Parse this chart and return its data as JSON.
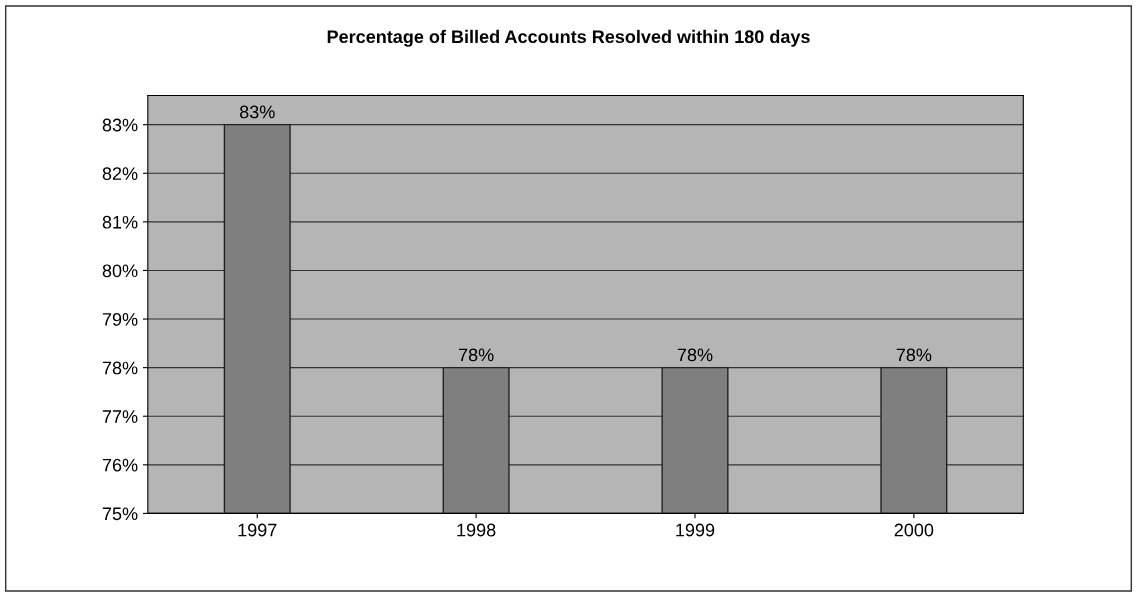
{
  "chart_data": {
    "type": "bar",
    "title": "Percentage of Billed Accounts Resolved within 180 days",
    "categories": [
      "1997",
      "1998",
      "1999",
      "2000"
    ],
    "values": [
      83,
      78,
      78,
      78
    ],
    "value_labels": [
      "83%",
      "78%",
      "78%",
      "78%"
    ],
    "color": "#7f7f7f",
    "ylim": [
      75,
      83.6
    ],
    "yticks": [
      {
        "value": 75,
        "label": "75%"
      },
      {
        "value": 76,
        "label": "76%"
      },
      {
        "value": 77,
        "label": "77%"
      },
      {
        "value": 78,
        "label": "78%"
      },
      {
        "value": 79,
        "label": "79%"
      },
      {
        "value": 80,
        "label": "80%"
      },
      {
        "value": 81,
        "label": "81%"
      },
      {
        "value": 82,
        "label": "82%"
      },
      {
        "value": 83,
        "label": "83%"
      }
    ],
    "grid": "y"
  }
}
